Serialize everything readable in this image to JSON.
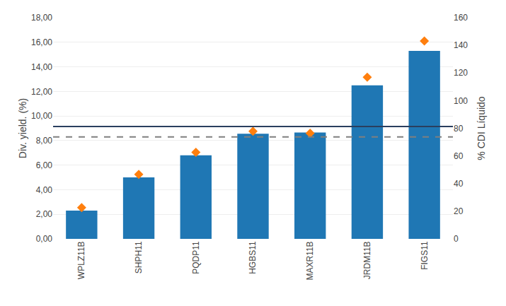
{
  "chart_data": {
    "type": "bar",
    "categories": [
      "WPLZ11B",
      "SHPH11",
      "PQDP11",
      "HGBS11",
      "MAXR11B",
      "JRDM11B",
      "FIGS11"
    ],
    "series": [
      {
        "type": "bar",
        "values": [
          2.3,
          5.0,
          6.8,
          8.55,
          8.65,
          12.5,
          15.3
        ]
      },
      {
        "type": "scatter",
        "marker": "diamond",
        "values": [
          2.55,
          5.25,
          7.05,
          8.75,
          8.6,
          13.15,
          16.1
        ]
      }
    ],
    "hlines": [
      {
        "y": 9.15,
        "line_style": "solid"
      },
      {
        "y": 8.3,
        "line_style": "dashed"
      }
    ],
    "ylabel": "Div. yield. (%)",
    "y2label": "% CDI Líquido",
    "ylim": [
      0,
      18
    ],
    "yticks": [
      {
        "value": 0,
        "label": "0,00"
      },
      {
        "value": 2,
        "label": "2,00"
      },
      {
        "value": 4,
        "label": "4,00"
      },
      {
        "value": 6,
        "label": "6,00"
      },
      {
        "value": 8,
        "label": "8,00"
      },
      {
        "value": 10,
        "label": "10,00"
      },
      {
        "value": 12,
        "label": "12,00"
      },
      {
        "value": 14,
        "label": "14,00"
      },
      {
        "value": 16,
        "label": "16,00"
      },
      {
        "value": 18,
        "label": "18,00"
      }
    ],
    "y2lim": [
      0,
      160
    ],
    "y2ticks": [
      0,
      20,
      40,
      60,
      80,
      100,
      120,
      140,
      160
    ],
    "grid": true
  }
}
